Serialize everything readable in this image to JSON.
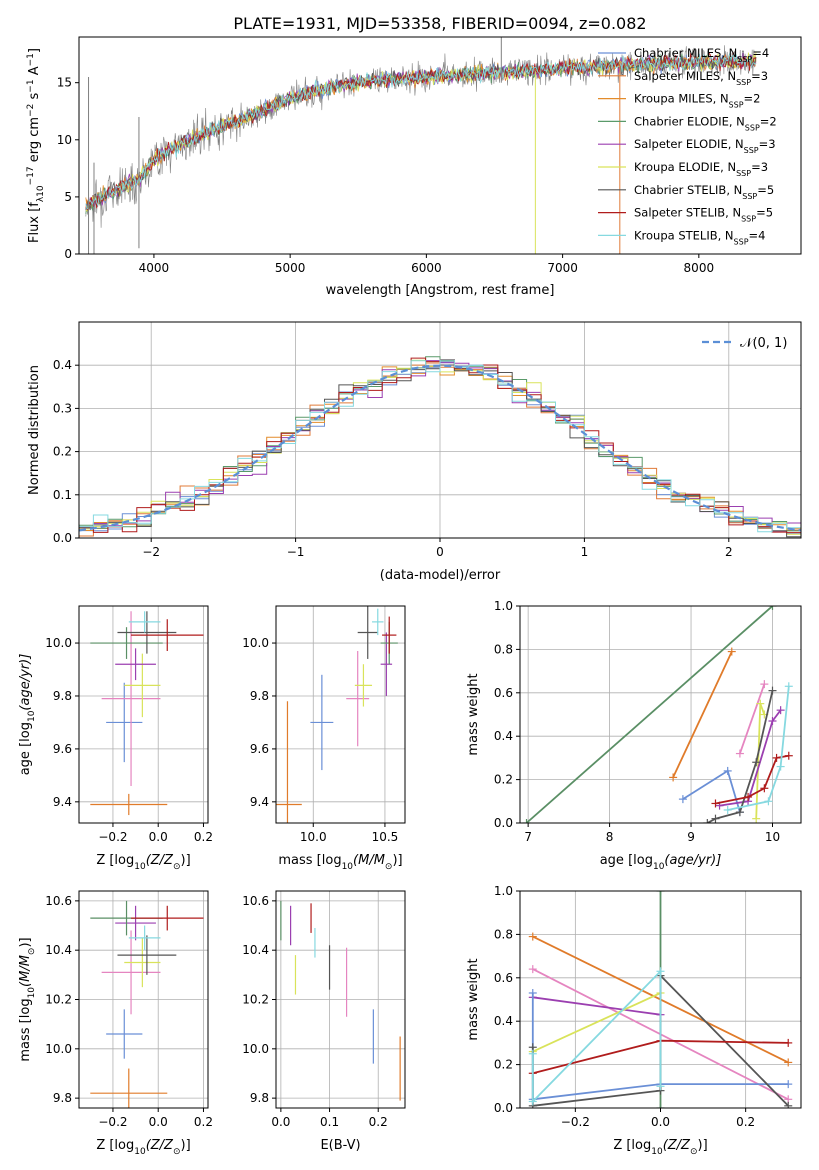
{
  "title": "PLATE=1931, MJD=53358, FIBERID=0094, z=0.082",
  "colors": {
    "chabrier_miles": "#6a8fd6",
    "salpeter_miles": "#e07b39",
    "kroupa_miles": "#e38c2b",
    "chabrier_elodie": "#5a9a6a",
    "salpeter_elodie": "#9b3fb0",
    "kroupa_elodie": "#d9e35a",
    "chabrier_stelib": "#555555",
    "salpeter_stelib": "#b01c1c",
    "kroupa_stelib": "#86d9e0",
    "data_spectrum": "#7f7f7f",
    "normal_curve": "#5b8fd6",
    "pink_series": "#e585c0",
    "green_series": "#5a8f65",
    "orange_series": "#e07b2a"
  },
  "chart_data": [
    {
      "type": "line",
      "panel": "spectrum",
      "xlabel": "wavelength [Angstrom, rest frame]",
      "ylabel_main": "Flux [f",
      "ylabel_parts": [
        "λ",
        "10",
        "−17",
        " erg cm",
        "−2",
        " s",
        "−1",
        " A",
        "−1",
        "]"
      ],
      "xlim": [
        3450,
        8750
      ],
      "ylim": [
        0,
        19
      ],
      "xticks": [
        4000,
        5000,
        6000,
        7000,
        8000
      ],
      "yticks": [
        0,
        5,
        10,
        15
      ],
      "legend_placement": "right",
      "legend": [
        {
          "label": "Chabrier MILES, N",
          "sub": "SSP",
          "tail": "=4",
          "color_key": "chabrier_miles"
        },
        {
          "label": "Salpeter MILES, N",
          "sub": "SSP",
          "tail": "=3",
          "color_key": "salpeter_miles"
        },
        {
          "label": "Kroupa MILES, N",
          "sub": "SSP",
          "tail": "=2",
          "color_key": "kroupa_miles"
        },
        {
          "label": "Chabrier ELODIE, N",
          "sub": "SSP",
          "tail": "=2",
          "color_key": "chabrier_elodie"
        },
        {
          "label": "Salpeter ELODIE, N",
          "sub": "SSP",
          "tail": "=3",
          "color_key": "salpeter_elodie"
        },
        {
          "label": "Kroupa ELODIE, N",
          "sub": "SSP",
          "tail": "=3",
          "color_key": "kroupa_elodie"
        },
        {
          "label": "Chabrier STELIB, N",
          "sub": "SSP",
          "tail": "=5",
          "color_key": "chabrier_stelib"
        },
        {
          "label": "Salpeter STELIB, N",
          "sub": "SSP",
          "tail": "=5",
          "color_key": "salpeter_stelib"
        },
        {
          "label": "Kroupa STELIB, N",
          "sub": "SSP",
          "tail": "=4",
          "color_key": "kroupa_stelib"
        }
      ],
      "continuum": {
        "x": [
          3500,
          3700,
          3900,
          4000,
          4200,
          4500,
          4800,
          5000,
          5300,
          5600,
          6000,
          6400,
          6800,
          7200,
          7600,
          8000,
          8400
        ],
        "y": [
          4.2,
          5.5,
          6.6,
          8.3,
          9.6,
          11.2,
          12.5,
          13.7,
          14.6,
          15.2,
          15.5,
          15.8,
          16.1,
          16.4,
          16.6,
          16.8,
          16.9
        ]
      },
      "vertical_spikes": [
        {
          "x": 3520,
          "y_low": 0,
          "y_high": 15.5
        },
        {
          "x": 3560,
          "y_low": 0,
          "y_high": 8
        },
        {
          "x": 3890,
          "y_low": 0.5,
          "y_high": 12
        },
        {
          "x": 6550,
          "y_low": 15,
          "y_high": 19
        },
        {
          "x": 6800,
          "y_low": 0,
          "y_high": 16
        },
        {
          "x": 7420,
          "y_low": 0,
          "y_high": 17
        }
      ]
    },
    {
      "type": "line",
      "panel": "residual_histogram",
      "xlabel": "(data-model)/error",
      "ylabel": "Normed distribution",
      "xlim": [
        -2.5,
        2.5
      ],
      "ylim": [
        0,
        0.5
      ],
      "xticks": [
        -2,
        -1,
        0,
        1,
        2
      ],
      "yticks": [
        0.0,
        0.1,
        0.2,
        0.3,
        0.4
      ],
      "grid": true,
      "legend": [
        {
          "label": "𝒩(0, 1)",
          "color_key": "normal_curve",
          "style": "dashed"
        }
      ],
      "legend_placement": "top-right",
      "bin_width": 0.1
    },
    {
      "type": "scatter",
      "panel": "age_vs_Z",
      "xlabel_main": "Z [log",
      "xlabel_parts": [
        "10",
        "(Z/Z",
        "⊙",
        ")]"
      ],
      "ylabel_main": "age  [log",
      "ylabel_parts": [
        "10",
        "(age/yr)]"
      ],
      "xlim": [
        -0.35,
        0.22
      ],
      "ylim": [
        9.32,
        10.14
      ],
      "xticks": [
        -0.2,
        0.0,
        0.2
      ],
      "yticks": [
        9.4,
        9.6,
        9.8,
        10.0
      ],
      "grid": true,
      "points": [
        {
          "x": -0.13,
          "y": 9.39,
          "xerr": 0.17,
          "yerr": 0.04,
          "color_key": "orange_series"
        },
        {
          "x": -0.15,
          "y": 9.7,
          "xerr": 0.08,
          "yerr": 0.15,
          "color_key": "chabrier_miles"
        },
        {
          "x": -0.12,
          "y": 9.79,
          "xerr": 0.13,
          "yerr": 0.33,
          "color_key": "pink_series"
        },
        {
          "x": -0.07,
          "y": 9.84,
          "xerr": 0.08,
          "yerr": 0.12,
          "color_key": "kroupa_elodie"
        },
        {
          "x": -0.1,
          "y": 9.92,
          "xerr": 0.09,
          "yerr": 0.06,
          "color_key": "salpeter_elodie"
        },
        {
          "x": -0.14,
          "y": 10.0,
          "xerr": 0.16,
          "yerr": 0.06,
          "color_key": "green_series"
        },
        {
          "x": -0.05,
          "y": 10.04,
          "xerr": 0.13,
          "yerr": 0.08,
          "color_key": "chabrier_stelib"
        },
        {
          "x": 0.04,
          "y": 10.03,
          "xerr": 0.16,
          "yerr": 0.06,
          "color_key": "salpeter_stelib"
        },
        {
          "x": -0.06,
          "y": 10.08,
          "xerr": 0.07,
          "yerr": 0.04,
          "color_key": "kroupa_stelib"
        }
      ]
    },
    {
      "type": "scatter",
      "panel": "age_vs_mass",
      "xlabel_main": "mass [log",
      "xlabel_parts": [
        "10",
        "(M/M",
        "⊙",
        ")]"
      ],
      "xlim": [
        9.74,
        10.64
      ],
      "ylim": [
        9.32,
        10.14
      ],
      "xticks": [
        10.0,
        10.5
      ],
      "yticks": [
        9.4,
        9.6,
        9.8,
        10.0
      ],
      "grid": true,
      "points": [
        {
          "x": 9.82,
          "y": 9.39,
          "xerr": 0.1,
          "yerr": 0.39,
          "color_key": "orange_series"
        },
        {
          "x": 10.06,
          "y": 9.7,
          "xerr": 0.08,
          "yerr": 0.18,
          "color_key": "chabrier_miles"
        },
        {
          "x": 10.31,
          "y": 9.79,
          "xerr": 0.08,
          "yerr": 0.18,
          "color_key": "pink_series"
        },
        {
          "x": 10.35,
          "y": 9.84,
          "xerr": 0.06,
          "yerr": 0.08,
          "color_key": "kroupa_elodie"
        },
        {
          "x": 10.51,
          "y": 9.92,
          "xerr": 0.04,
          "yerr": 0.12,
          "color_key": "salpeter_elodie"
        },
        {
          "x": 10.53,
          "y": 10.0,
          "xerr": 0.06,
          "yerr": 0.08,
          "color_key": "green_series"
        },
        {
          "x": 10.38,
          "y": 10.04,
          "xerr": 0.07,
          "yerr": 0.1,
          "color_key": "chabrier_stelib"
        },
        {
          "x": 10.53,
          "y": 10.03,
          "xerr": 0.05,
          "yerr": 0.07,
          "color_key": "salpeter_stelib"
        },
        {
          "x": 10.45,
          "y": 10.08,
          "xerr": 0.04,
          "yerr": 0.05,
          "color_key": "kroupa_stelib"
        }
      ]
    },
    {
      "type": "line",
      "panel": "massweight_vs_age",
      "xlabel_main": "age  [log",
      "xlabel_parts": [
        "10",
        "(age/yr)]"
      ],
      "ylabel": "mass weight",
      "xlim": [
        6.9,
        10.35
      ],
      "ylim": [
        0,
        1
      ],
      "xticks": [
        7,
        8,
        9,
        10
      ],
      "yticks": [
        0.0,
        0.2,
        0.4,
        0.6,
        0.8,
        1.0
      ],
      "grid": true,
      "series": [
        {
          "color_key": "green_series",
          "x": [
            6.98,
            10.0
          ],
          "y": [
            0.0,
            1.0
          ]
        },
        {
          "color_key": "orange_series",
          "x": [
            8.78,
            9.5
          ],
          "y": [
            0.21,
            0.79
          ]
        },
        {
          "color_key": "chabrier_miles",
          "x": [
            8.9,
            9.45,
            9.6
          ],
          "y": [
            0.11,
            0.24,
            0.05
          ]
        },
        {
          "color_key": "pink_series",
          "x": [
            9.6,
            9.9
          ],
          "y": [
            0.32,
            0.64
          ]
        },
        {
          "color_key": "kroupa_elodie",
          "x": [
            9.8,
            9.85,
            9.9
          ],
          "y": [
            0.02,
            0.55,
            0.5
          ]
        },
        {
          "color_key": "salpeter_elodie",
          "x": [
            9.35,
            9.7,
            10.0,
            10.1
          ],
          "y": [
            0.08,
            0.1,
            0.47,
            0.52
          ]
        },
        {
          "color_key": "chabrier_stelib",
          "x": [
            9.2,
            9.3,
            9.6,
            9.8,
            10.0
          ],
          "y": [
            0.0,
            0.02,
            0.05,
            0.28,
            0.61
          ]
        },
        {
          "color_key": "salpeter_stelib",
          "x": [
            9.3,
            9.7,
            9.9,
            10.05,
            10.2
          ],
          "y": [
            0.09,
            0.12,
            0.16,
            0.3,
            0.31
          ]
        },
        {
          "color_key": "kroupa_stelib",
          "x": [
            9.45,
            9.95,
            10.1,
            10.2
          ],
          "y": [
            0.06,
            0.1,
            0.26,
            0.63
          ]
        }
      ]
    },
    {
      "type": "scatter",
      "panel": "mass_vs_Z",
      "xlabel_main": "Z [log",
      "xlabel_parts": [
        "10",
        "(Z/Z",
        "⊙",
        ")]"
      ],
      "ylabel_main": "mass [log",
      "ylabel_parts": [
        "10",
        "(M/M",
        "⊙",
        ")]"
      ],
      "xlim": [
        -0.35,
        0.22
      ],
      "ylim": [
        9.76,
        10.64
      ],
      "xticks": [
        -0.2,
        0.0,
        0.2
      ],
      "yticks": [
        9.8,
        10.0,
        10.2,
        10.4,
        10.6
      ],
      "grid": true,
      "points": [
        {
          "x": -0.13,
          "y": 9.82,
          "xerr": 0.17,
          "yerr": 0.1,
          "color_key": "orange_series"
        },
        {
          "x": -0.15,
          "y": 10.06,
          "xerr": 0.08,
          "yerr": 0.1,
          "color_key": "chabrier_miles"
        },
        {
          "x": -0.12,
          "y": 10.31,
          "xerr": 0.13,
          "yerr": 0.17,
          "color_key": "pink_series"
        },
        {
          "x": -0.07,
          "y": 10.35,
          "xerr": 0.08,
          "yerr": 0.1,
          "color_key": "kroupa_elodie"
        },
        {
          "x": -0.1,
          "y": 10.51,
          "xerr": 0.09,
          "yerr": 0.07,
          "color_key": "salpeter_elodie"
        },
        {
          "x": -0.14,
          "y": 10.53,
          "xerr": 0.16,
          "yerr": 0.07,
          "color_key": "green_series"
        },
        {
          "x": -0.05,
          "y": 10.38,
          "xerr": 0.13,
          "yerr": 0.08,
          "color_key": "chabrier_stelib"
        },
        {
          "x": 0.04,
          "y": 10.53,
          "xerr": 0.16,
          "yerr": 0.05,
          "color_key": "salpeter_stelib"
        },
        {
          "x": -0.06,
          "y": 10.45,
          "xerr": 0.07,
          "yerr": 0.05,
          "color_key": "kroupa_stelib"
        }
      ]
    },
    {
      "type": "scatter",
      "panel": "mass_vs_EBV",
      "xlabel": "E(B-V)",
      "xlim": [
        -0.01,
        0.255
      ],
      "ylim": [
        9.76,
        10.64
      ],
      "xticks": [
        0.0,
        0.1,
        0.2
      ],
      "yticks": [
        9.8,
        10.0,
        10.2,
        10.4,
        10.6
      ],
      "grid": true,
      "points": [
        {
          "x": 0.245,
          "y": 9.92,
          "yerr": 0.13,
          "color_key": "orange_series"
        },
        {
          "x": 0.19,
          "y": 10.05,
          "yerr": 0.11,
          "color_key": "chabrier_miles"
        },
        {
          "x": 0.135,
          "y": 10.27,
          "yerr": 0.14,
          "color_key": "pink_series"
        },
        {
          "x": 0.03,
          "y": 10.3,
          "yerr": 0.08,
          "color_key": "kroupa_elodie"
        },
        {
          "x": 0.02,
          "y": 10.5,
          "yerr": 0.08,
          "color_key": "salpeter_elodie"
        },
        {
          "x": 0.0,
          "y": 10.52,
          "yerr": 0.08,
          "color_key": "green_series"
        },
        {
          "x": 0.1,
          "y": 10.33,
          "yerr": 0.09,
          "color_key": "chabrier_stelib"
        },
        {
          "x": 0.062,
          "y": 10.53,
          "yerr": 0.06,
          "color_key": "salpeter_stelib"
        },
        {
          "x": 0.07,
          "y": 10.43,
          "yerr": 0.06,
          "color_key": "kroupa_stelib"
        }
      ]
    },
    {
      "type": "line",
      "panel": "massweight_vs_Z",
      "xlabel_main": "Z [log",
      "xlabel_parts": [
        "10",
        "(Z/Z",
        "⊙",
        ")]"
      ],
      "ylabel": "mass weight",
      "xlim": [
        -0.33,
        0.33
      ],
      "ylim": [
        0,
        1
      ],
      "xticks": [
        -0.2,
        0.0,
        0.2
      ],
      "yticks": [
        0.0,
        0.2,
        0.4,
        0.6,
        0.8,
        1.0
      ],
      "grid": true,
      "series": [
        {
          "color_key": "green_series",
          "x": [
            0.0,
            0.0
          ],
          "y": [
            0.0,
            1.0
          ]
        },
        {
          "color_key": "orange_series",
          "x": [
            -0.3,
            0.3
          ],
          "y": [
            0.79,
            0.21
          ]
        },
        {
          "color_key": "pink_series",
          "x": [
            -0.3,
            0.3
          ],
          "y": [
            0.64,
            0.04
          ]
        },
        {
          "color_key": "salpeter_elodie",
          "x": [
            -0.3,
            0.0
          ],
          "y": [
            0.51,
            0.43
          ]
        },
        {
          "color_key": "kroupa_elodie",
          "x": [
            -0.3,
            0.0
          ],
          "y": [
            0.26,
            0.53
          ]
        },
        {
          "color_key": "chabrier_miles",
          "x": [
            -0.3,
            -0.3,
            0.0,
            0.3
          ],
          "y": [
            0.53,
            0.04,
            0.11,
            0.11
          ]
        },
        {
          "color_key": "chabrier_stelib",
          "x": [
            -0.3,
            -0.3,
            0.0,
            0.0,
            0.3
          ],
          "y": [
            0.28,
            0.01,
            0.08,
            0.61,
            0.01
          ]
        },
        {
          "color_key": "salpeter_stelib",
          "x": [
            -0.3,
            0.0,
            0.3
          ],
          "y": [
            0.16,
            0.31,
            0.3
          ]
        },
        {
          "color_key": "kroupa_stelib",
          "x": [
            -0.3,
            -0.3,
            0.0,
            0.0
          ],
          "y": [
            0.25,
            0.03,
            0.63,
            0.1
          ]
        }
      ]
    }
  ]
}
